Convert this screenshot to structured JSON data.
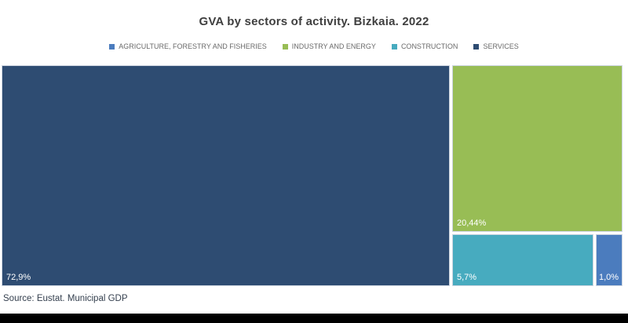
{
  "title": "GVA by sectors of activity. Bizkaia. 2022",
  "legend": {
    "items": [
      {
        "label": "AGRICULTURE, FORESTRY AND FISHERIES",
        "color": "#4B7CBE"
      },
      {
        "label": "INDUSTRY AND ENERGY",
        "color": "#98BD55"
      },
      {
        "label": "CONSTRUCTION",
        "color": "#47ABBF"
      },
      {
        "label": "SERVICES",
        "color": "#2E4C72"
      }
    ]
  },
  "tiles": [
    {
      "name": "SERVICES",
      "label": "72,9%",
      "color": "#2E4C72"
    },
    {
      "name": "INDUSTRY AND ENERGY",
      "label": "20,44%",
      "color": "#98BD55"
    },
    {
      "name": "CONSTRUCTION",
      "label": "5,7%",
      "color": "#47ABBF"
    },
    {
      "name": "AGRICULTURE, FORESTRY AND FISHERIES",
      "label": "1,0%",
      "color": "#4B7CBE"
    }
  ],
  "source": "Source: Eustat. Municipal GDP",
  "colors": {
    "services": "#2E4C72",
    "industry_and_energy": "#98BD55",
    "construction": "#47ABBF",
    "agriculture": "#4B7CBE",
    "tile_border": "#ccd4df",
    "title_text": "#3f3f3f",
    "legend_text": "#6a6a6a",
    "source_text": "#35404f",
    "bottom_bar": "#000000"
  },
  "chart_data": {
    "type": "treemap",
    "title": "GVA by sectors of activity. Bizkaia. 2022",
    "unit": "%",
    "categories": [
      "SERVICES",
      "INDUSTRY AND ENERGY",
      "CONSTRUCTION",
      "AGRICULTURE, FORESTRY AND FISHERIES"
    ],
    "values": [
      72.9,
      20.44,
      5.7,
      1.0
    ],
    "data_labels": [
      "72,9%",
      "20,44%",
      "5,7%",
      "1,0%"
    ],
    "series_colors": [
      "#2E4C72",
      "#98BD55",
      "#47ABBF",
      "#4B7CBE"
    ],
    "legend_position": "top",
    "source": "Source: Eustat. Municipal GDP"
  }
}
